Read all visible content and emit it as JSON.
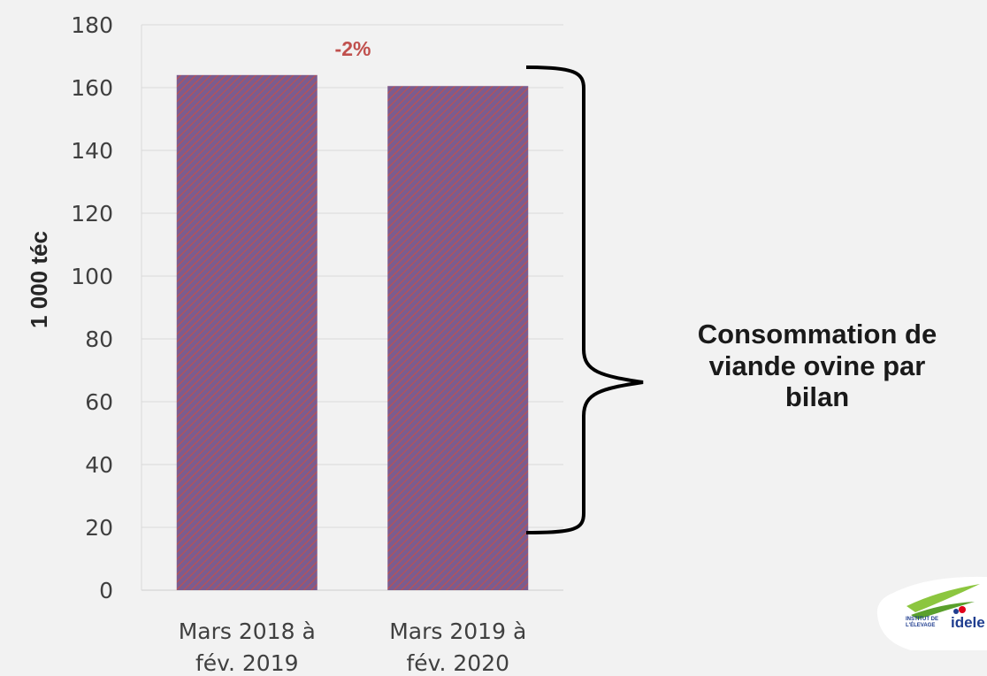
{
  "chart_data": {
    "type": "bar",
    "categories": [
      [
        "Mars 2018 à",
        "fév. 2019"
      ],
      [
        "Mars 2019 à",
        "fév. 2020"
      ]
    ],
    "values": [
      164,
      160.5
    ],
    "ylabel": "1 000 téc",
    "ylim": [
      0,
      180
    ],
    "yticks": [
      0,
      20,
      40,
      60,
      80,
      100,
      120,
      140,
      160,
      180
    ],
    "grid": true,
    "annotation": "-2%",
    "bar_color": "#7b5c8f",
    "bar_hatch_color": "#c0504d"
  },
  "brace_label": [
    "Consommation de",
    "viande ovine par",
    "bilan"
  ],
  "logo": {
    "text": "idele",
    "subtext": [
      "INSTITUT DE",
      "L'ÉLEVAGE"
    ],
    "colors": [
      "#8cc63f",
      "#1f3d8f",
      "#e2001a"
    ]
  }
}
